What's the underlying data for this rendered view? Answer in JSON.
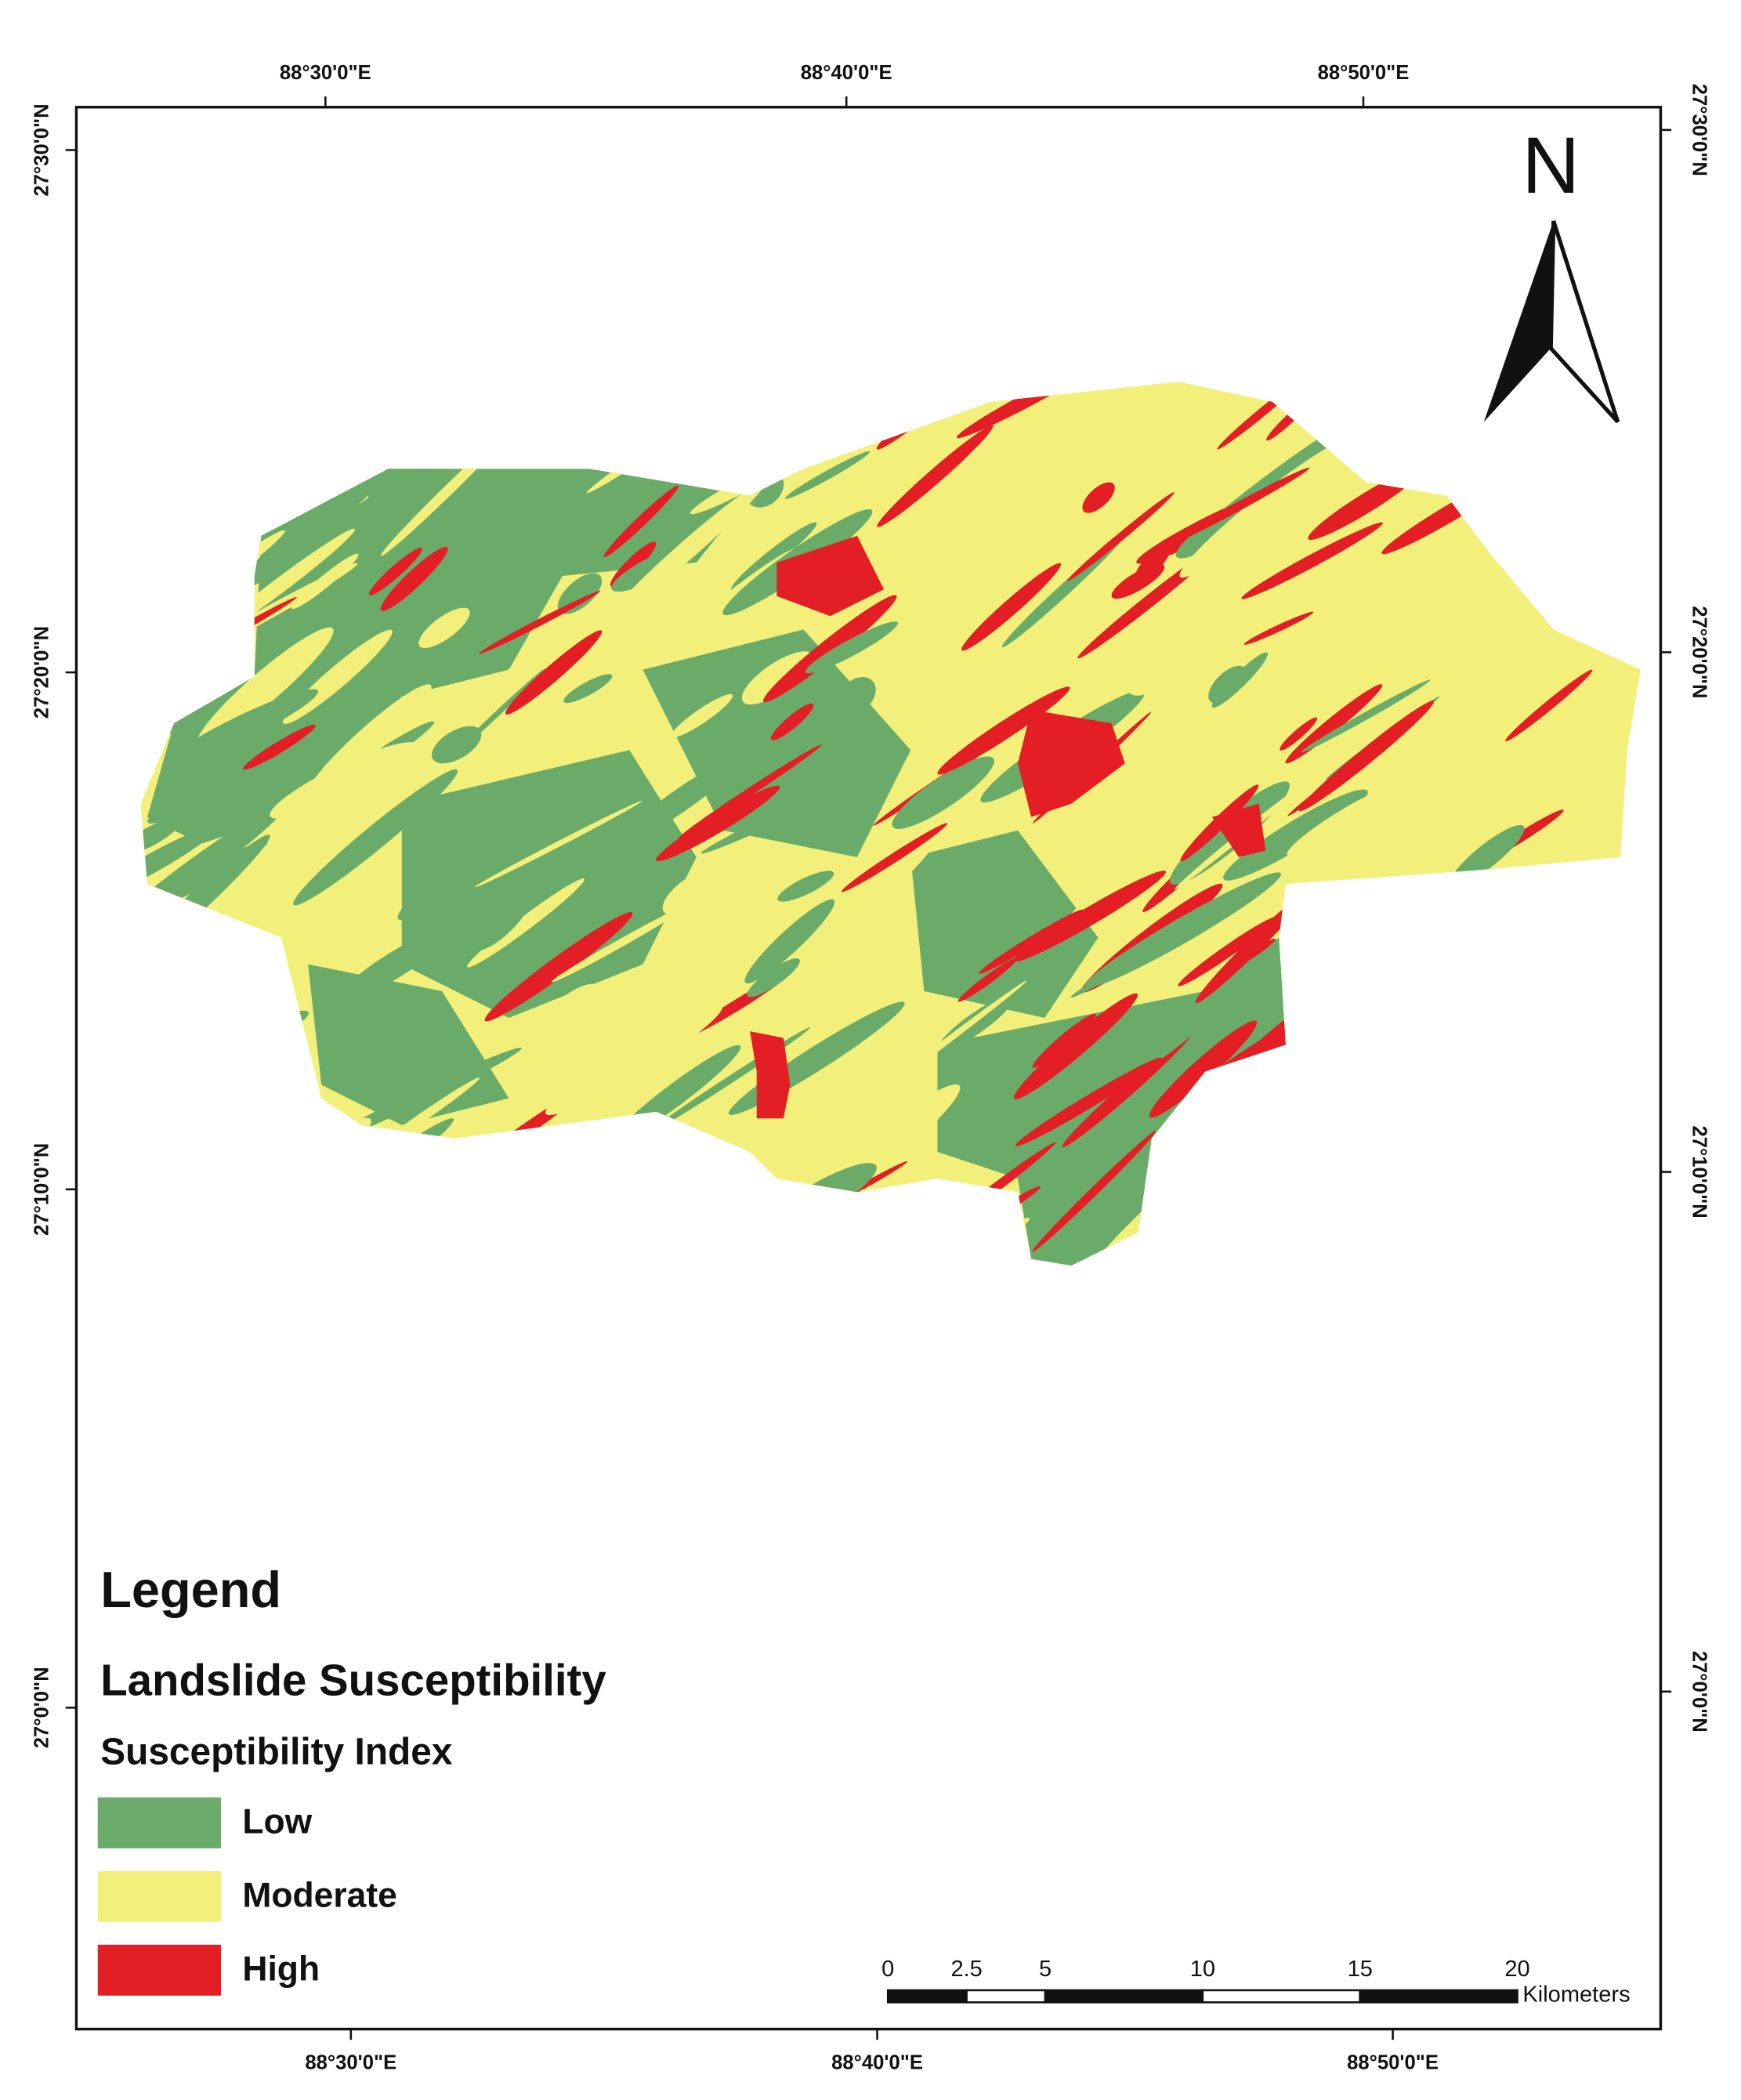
{
  "frame": {
    "top_labels": [
      "88°30'0\"E",
      "88°40'0\"E",
      "88°50'0\"E"
    ],
    "bottom_labels": [
      "88°30'0\"E",
      "88°40'0\"E",
      "88°50'0\"E"
    ],
    "left_labels": [
      "27°30'0\"N",
      "27°20'0\"N",
      "27°10'0\"N",
      "27°0'0\"N"
    ],
    "right_labels": [
      "27°30'0\"N",
      "27°20'0\"N",
      "27°10'0\"N",
      "27°0'0\"N"
    ]
  },
  "north_arrow": "N",
  "legend": {
    "title": "Legend",
    "subtitle": "Landslide Susceptibility",
    "index_title": "Susceptibility Index",
    "items": [
      {
        "label": "Low",
        "color": "#6aab6a"
      },
      {
        "label": "Moderate",
        "color": "#f2f07a"
      },
      {
        "label": "High",
        "color": "#e31e24"
      }
    ]
  },
  "scale_bar": {
    "ticks": [
      0,
      2.5,
      5,
      10,
      15,
      20
    ],
    "unit": "Kilometers"
  }
}
